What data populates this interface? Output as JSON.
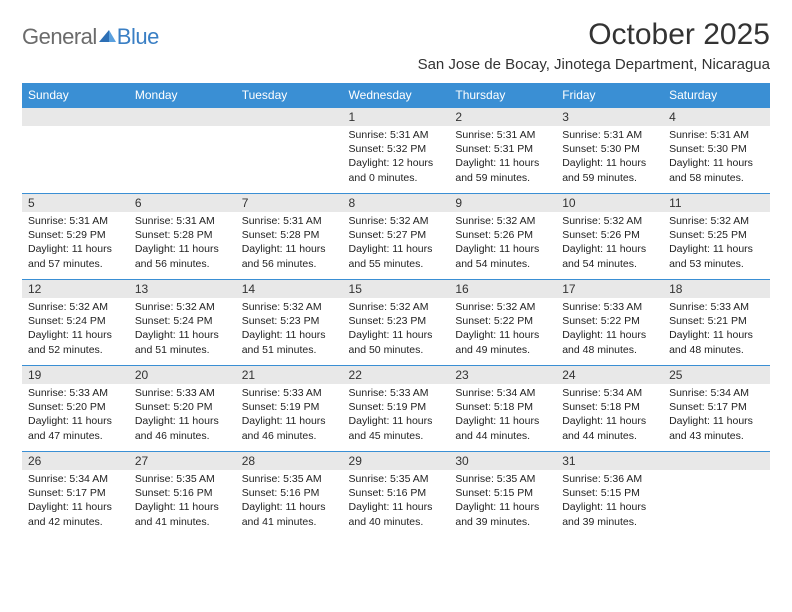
{
  "logo": {
    "text1": "General",
    "text2": "Blue"
  },
  "title": "October 2025",
  "location": "San Jose de Bocay, Jinotega Department, Nicaragua",
  "header_bg": "#3a8fd4",
  "daynum_bg": "#e8e8e8",
  "weekdays": [
    "Sunday",
    "Monday",
    "Tuesday",
    "Wednesday",
    "Thursday",
    "Friday",
    "Saturday"
  ],
  "weeks": [
    [
      null,
      null,
      null,
      {
        "n": "1",
        "sr": "5:31 AM",
        "ss": "5:32 PM",
        "dl": "12 hours and 0 minutes."
      },
      {
        "n": "2",
        "sr": "5:31 AM",
        "ss": "5:31 PM",
        "dl": "11 hours and 59 minutes."
      },
      {
        "n": "3",
        "sr": "5:31 AM",
        "ss": "5:30 PM",
        "dl": "11 hours and 59 minutes."
      },
      {
        "n": "4",
        "sr": "5:31 AM",
        "ss": "5:30 PM",
        "dl": "11 hours and 58 minutes."
      }
    ],
    [
      {
        "n": "5",
        "sr": "5:31 AM",
        "ss": "5:29 PM",
        "dl": "11 hours and 57 minutes."
      },
      {
        "n": "6",
        "sr": "5:31 AM",
        "ss": "5:28 PM",
        "dl": "11 hours and 56 minutes."
      },
      {
        "n": "7",
        "sr": "5:31 AM",
        "ss": "5:28 PM",
        "dl": "11 hours and 56 minutes."
      },
      {
        "n": "8",
        "sr": "5:32 AM",
        "ss": "5:27 PM",
        "dl": "11 hours and 55 minutes."
      },
      {
        "n": "9",
        "sr": "5:32 AM",
        "ss": "5:26 PM",
        "dl": "11 hours and 54 minutes."
      },
      {
        "n": "10",
        "sr": "5:32 AM",
        "ss": "5:26 PM",
        "dl": "11 hours and 54 minutes."
      },
      {
        "n": "11",
        "sr": "5:32 AM",
        "ss": "5:25 PM",
        "dl": "11 hours and 53 minutes."
      }
    ],
    [
      {
        "n": "12",
        "sr": "5:32 AM",
        "ss": "5:24 PM",
        "dl": "11 hours and 52 minutes."
      },
      {
        "n": "13",
        "sr": "5:32 AM",
        "ss": "5:24 PM",
        "dl": "11 hours and 51 minutes."
      },
      {
        "n": "14",
        "sr": "5:32 AM",
        "ss": "5:23 PM",
        "dl": "11 hours and 51 minutes."
      },
      {
        "n": "15",
        "sr": "5:32 AM",
        "ss": "5:23 PM",
        "dl": "11 hours and 50 minutes."
      },
      {
        "n": "16",
        "sr": "5:32 AM",
        "ss": "5:22 PM",
        "dl": "11 hours and 49 minutes."
      },
      {
        "n": "17",
        "sr": "5:33 AM",
        "ss": "5:22 PM",
        "dl": "11 hours and 48 minutes."
      },
      {
        "n": "18",
        "sr": "5:33 AM",
        "ss": "5:21 PM",
        "dl": "11 hours and 48 minutes."
      }
    ],
    [
      {
        "n": "19",
        "sr": "5:33 AM",
        "ss": "5:20 PM",
        "dl": "11 hours and 47 minutes."
      },
      {
        "n": "20",
        "sr": "5:33 AM",
        "ss": "5:20 PM",
        "dl": "11 hours and 46 minutes."
      },
      {
        "n": "21",
        "sr": "5:33 AM",
        "ss": "5:19 PM",
        "dl": "11 hours and 46 minutes."
      },
      {
        "n": "22",
        "sr": "5:33 AM",
        "ss": "5:19 PM",
        "dl": "11 hours and 45 minutes."
      },
      {
        "n": "23",
        "sr": "5:34 AM",
        "ss": "5:18 PM",
        "dl": "11 hours and 44 minutes."
      },
      {
        "n": "24",
        "sr": "5:34 AM",
        "ss": "5:18 PM",
        "dl": "11 hours and 44 minutes."
      },
      {
        "n": "25",
        "sr": "5:34 AM",
        "ss": "5:17 PM",
        "dl": "11 hours and 43 minutes."
      }
    ],
    [
      {
        "n": "26",
        "sr": "5:34 AM",
        "ss": "5:17 PM",
        "dl": "11 hours and 42 minutes."
      },
      {
        "n": "27",
        "sr": "5:35 AM",
        "ss": "5:16 PM",
        "dl": "11 hours and 41 minutes."
      },
      {
        "n": "28",
        "sr": "5:35 AM",
        "ss": "5:16 PM",
        "dl": "11 hours and 41 minutes."
      },
      {
        "n": "29",
        "sr": "5:35 AM",
        "ss": "5:16 PM",
        "dl": "11 hours and 40 minutes."
      },
      {
        "n": "30",
        "sr": "5:35 AM",
        "ss": "5:15 PM",
        "dl": "11 hours and 39 minutes."
      },
      {
        "n": "31",
        "sr": "5:36 AM",
        "ss": "5:15 PM",
        "dl": "11 hours and 39 minutes."
      },
      null
    ]
  ]
}
